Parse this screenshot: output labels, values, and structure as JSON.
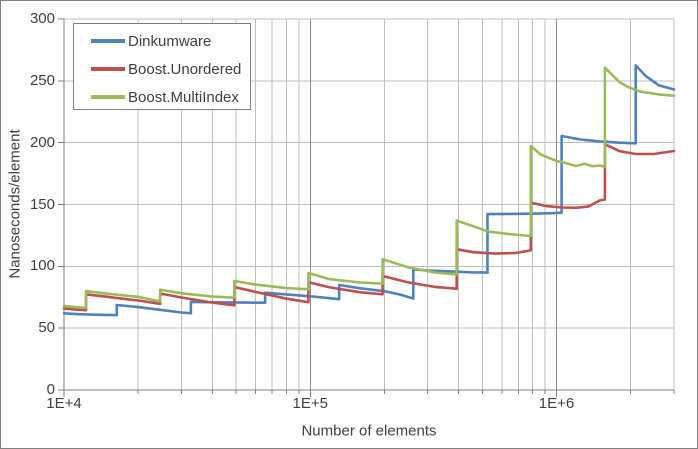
{
  "chart_data": {
    "type": "line",
    "title": "",
    "xlabel": "Number of elements",
    "ylabel": "Nanoseconds/element",
    "x_scale": "log",
    "grid": true,
    "legend_position": "top-left",
    "xlim": [
      10000,
      3000000
    ],
    "ylim": [
      0,
      300
    ],
    "y_ticks": [
      {
        "value": 0,
        "label": "0"
      },
      {
        "value": 50,
        "label": "50"
      },
      {
        "value": 100,
        "label": "100"
      },
      {
        "value": 150,
        "label": "150"
      },
      {
        "value": 200,
        "label": "200"
      },
      {
        "value": 250,
        "label": "250"
      },
      {
        "value": 300,
        "label": "300"
      }
    ],
    "x_major_ticks": [
      {
        "value": 10000,
        "label": "1E+4"
      },
      {
        "value": 100000,
        "label": "1E+5"
      },
      {
        "value": 1000000,
        "label": "1E+6"
      }
    ],
    "colors": {
      "grid_minor": "#BFBFBF",
      "grid_major": "#8C8C8C",
      "axis": "#7F7F7F",
      "text": "#404040",
      "border": "#808080",
      "background": "#FFFFFF"
    },
    "series": [
      {
        "name": "Dinkumware",
        "color": "#4F81BD",
        "points": [
          [
            10000,
            62
          ],
          [
            11500,
            61.3
          ],
          [
            14000,
            60.8
          ],
          [
            16384,
            60.6
          ],
          [
            16384,
            68.7
          ],
          [
            20000,
            67
          ],
          [
            25000,
            64.6
          ],
          [
            30000,
            62.7
          ],
          [
            32768,
            62
          ],
          [
            32768,
            71.2
          ],
          [
            40000,
            70.9
          ],
          [
            55000,
            70.7
          ],
          [
            65536,
            70.6
          ],
          [
            65536,
            78.7
          ],
          [
            80000,
            77.3
          ],
          [
            100000,
            75.8
          ],
          [
            120000,
            74.2
          ],
          [
            131072,
            73.4
          ],
          [
            131072,
            84.9
          ],
          [
            160000,
            82.2
          ],
          [
            200000,
            79.9
          ],
          [
            230000,
            77.3
          ],
          [
            262144,
            74
          ],
          [
            262144,
            97.6
          ],
          [
            300000,
            96.6
          ],
          [
            360000,
            96
          ],
          [
            450000,
            95.2
          ],
          [
            524288,
            94.9
          ],
          [
            524288,
            142.2
          ],
          [
            650000,
            142.4
          ],
          [
            800000,
            142.6
          ],
          [
            950000,
            143
          ],
          [
            1048576,
            143.4
          ],
          [
            1048576,
            205.4
          ],
          [
            1250000,
            202.6
          ],
          [
            1500000,
            201
          ],
          [
            1800000,
            200
          ],
          [
            2097152,
            199.5
          ],
          [
            2097152,
            262.5
          ],
          [
            2300000,
            254
          ],
          [
            2600000,
            246.5
          ],
          [
            3000000,
            243
          ]
        ]
      },
      {
        "name": "Boost.Unordered",
        "color": "#C0504D",
        "points": [
          [
            10000,
            66
          ],
          [
            11300,
            64.9
          ],
          [
            12289,
            64.5
          ],
          [
            12289,
            77.4
          ],
          [
            15000,
            75.4
          ],
          [
            20000,
            72.4
          ],
          [
            24593,
            69.7
          ],
          [
            24593,
            78
          ],
          [
            30000,
            74.8
          ],
          [
            40000,
            70.7
          ],
          [
            49157,
            68.5
          ],
          [
            49157,
            83.3
          ],
          [
            60000,
            79.3
          ],
          [
            80000,
            73.8
          ],
          [
            98317,
            71
          ],
          [
            98317,
            87.2
          ],
          [
            120000,
            83
          ],
          [
            160000,
            79
          ],
          [
            196613,
            77.4
          ],
          [
            196613,
            92.2
          ],
          [
            250000,
            87
          ],
          [
            320000,
            83.4
          ],
          [
            393241,
            81.9
          ],
          [
            393241,
            113.8
          ],
          [
            460000,
            111.4
          ],
          [
            560000,
            110.3
          ],
          [
            680000,
            110.8
          ],
          [
            786433,
            112.9
          ],
          [
            786433,
            151.5
          ],
          [
            900000,
            148.9
          ],
          [
            1050000,
            147.6
          ],
          [
            1200000,
            147.3
          ],
          [
            1350000,
            148.5
          ],
          [
            1500000,
            153.3
          ],
          [
            1572869,
            154
          ],
          [
            1572869,
            198.7
          ],
          [
            1800000,
            193.2
          ],
          [
            2100000,
            190.8
          ],
          [
            2500000,
            190.9
          ],
          [
            3000000,
            193.3
          ]
        ]
      },
      {
        "name": "Boost.MultiIndex",
        "color": "#9BBB59",
        "points": [
          [
            10000,
            68
          ],
          [
            11300,
            66.9
          ],
          [
            12289,
            66.5
          ],
          [
            12289,
            80
          ],
          [
            15000,
            77.9
          ],
          [
            20000,
            75.4
          ],
          [
            24593,
            71.6
          ],
          [
            24593,
            81
          ],
          [
            30000,
            78.2
          ],
          [
            40000,
            75.6
          ],
          [
            49157,
            74.6
          ],
          [
            49157,
            88.1
          ],
          [
            60000,
            85.2
          ],
          [
            80000,
            82.4
          ],
          [
            98317,
            81.4
          ],
          [
            98317,
            94.6
          ],
          [
            120000,
            89.6
          ],
          [
            160000,
            86.9
          ],
          [
            196613,
            86
          ],
          [
            196613,
            105.7
          ],
          [
            250000,
            99.2
          ],
          [
            320000,
            95
          ],
          [
            393241,
            93.5
          ],
          [
            393241,
            137
          ],
          [
            460000,
            132.4
          ],
          [
            530000,
            128
          ],
          [
            650000,
            126
          ],
          [
            786433,
            124.5
          ],
          [
            786433,
            197.3
          ],
          [
            860000,
            190.6
          ],
          [
            1000000,
            185.2
          ],
          [
            1080000,
            183.8
          ],
          [
            1200000,
            181.1
          ],
          [
            1300000,
            183
          ],
          [
            1400000,
            181
          ],
          [
            1500000,
            181.5
          ],
          [
            1572869,
            180.6
          ],
          [
            1572869,
            260.6
          ],
          [
            1800000,
            249
          ],
          [
            1950000,
            245
          ],
          [
            2200000,
            241.2
          ],
          [
            2600000,
            239
          ],
          [
            3000000,
            238
          ]
        ]
      }
    ]
  }
}
